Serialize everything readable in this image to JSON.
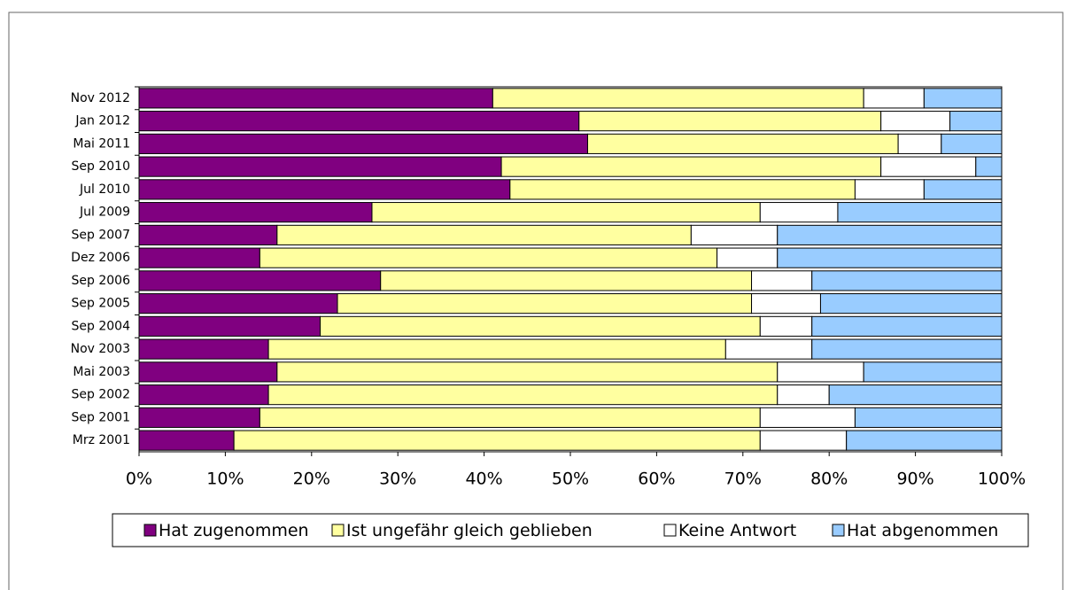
{
  "chart_data": {
    "type": "stacked_bar_horizontal",
    "categories": [
      "Nov 2012",
      "Jan 2012",
      "Mai 2011",
      "Sep 2010",
      "Jul 2010",
      "Jul 2009",
      "Sep 2007",
      "Dez 2006",
      "Sep 2006",
      "Sep 2005",
      "Sep 2004",
      "Nov 2003",
      "Mai 2003",
      "Sep 2002",
      "Sep 2001",
      "Mrz 2001"
    ],
    "series": [
      {
        "name": "Hat zugenommen",
        "color": "#800080",
        "values": [
          41,
          51,
          52,
          42,
          43,
          27,
          16,
          14,
          28,
          23,
          21,
          15,
          16,
          15,
          14,
          11
        ]
      },
      {
        "name": "Ist ungefähr gleich geblieben",
        "color": "#ffffa0",
        "values": [
          43,
          35,
          36,
          44,
          40,
          45,
          48,
          53,
          43,
          48,
          51,
          53,
          58,
          59,
          58,
          61
        ]
      },
      {
        "name": "Keine Antwort",
        "color": "#ffffff",
        "values": [
          7,
          8,
          5,
          11,
          8,
          9,
          10,
          7,
          7,
          8,
          6,
          10,
          10,
          6,
          11,
          10
        ]
      },
      {
        "name": "Hat abgenommen",
        "color": "#99ccff",
        "values": [
          9,
          6,
          7,
          3,
          9,
          19,
          26,
          26,
          22,
          21,
          22,
          22,
          16,
          20,
          17,
          18
        ]
      }
    ],
    "xlim": [
      0,
      100
    ],
    "xticks": [
      {
        "value": 0,
        "label": "0%"
      },
      {
        "value": 10,
        "label": "10%"
      },
      {
        "value": 20,
        "label": "20%"
      },
      {
        "value": 30,
        "label": "30%"
      },
      {
        "value": 40,
        "label": "40%"
      },
      {
        "value": 50,
        "label": "50%"
      },
      {
        "value": 60,
        "label": "60%"
      },
      {
        "value": 70,
        "label": "70%"
      },
      {
        "value": 80,
        "label": "80%"
      },
      {
        "value": 90,
        "label": "90%"
      },
      {
        "value": 100,
        "label": "100%"
      }
    ],
    "legend": "bottom"
  }
}
